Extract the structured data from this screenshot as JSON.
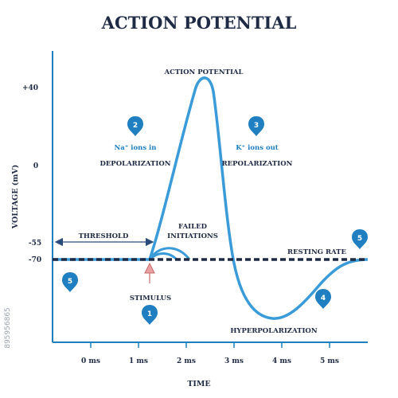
{
  "title": "ACTION POTENTIAL",
  "axes": {
    "y_label": "VOLTAGE (mV)",
    "x_label": "TIME",
    "y_ticks": [
      "+40",
      "0",
      "-55",
      "-70"
    ],
    "x_ticks": [
      "0 ms",
      "1 ms",
      "2 ms",
      "3 ms",
      "4 ms",
      "5 ms"
    ]
  },
  "labels": {
    "peak": "ACTION POTENTIAL",
    "na_ions": "Na⁺ ions in",
    "depolarization": "DEPOLARIZATION",
    "k_ions": "K⁺ ions out",
    "repolarization": "REPOLARIZATION",
    "threshold": "THRESHOLD",
    "failed_1": "FAILED",
    "failed_2": "INITIATIONS",
    "resting": "RESTING RATE",
    "stimulus": "STIMULUS",
    "hyperpolarization": "HYPERPOLARIZATION"
  },
  "markers": {
    "stimulus": "1",
    "depolarization": "2",
    "repolarization": "3",
    "hyperpolarization": "4",
    "resting_right": "5",
    "resting_left": "5"
  },
  "watermark": {
    "id": "895956865"
  },
  "colors": {
    "curve": "#3a9bd8",
    "pin": "#1f7fc1",
    "text": "#1f2a44",
    "arrow_stimulus": "#e8a0a0"
  }
}
